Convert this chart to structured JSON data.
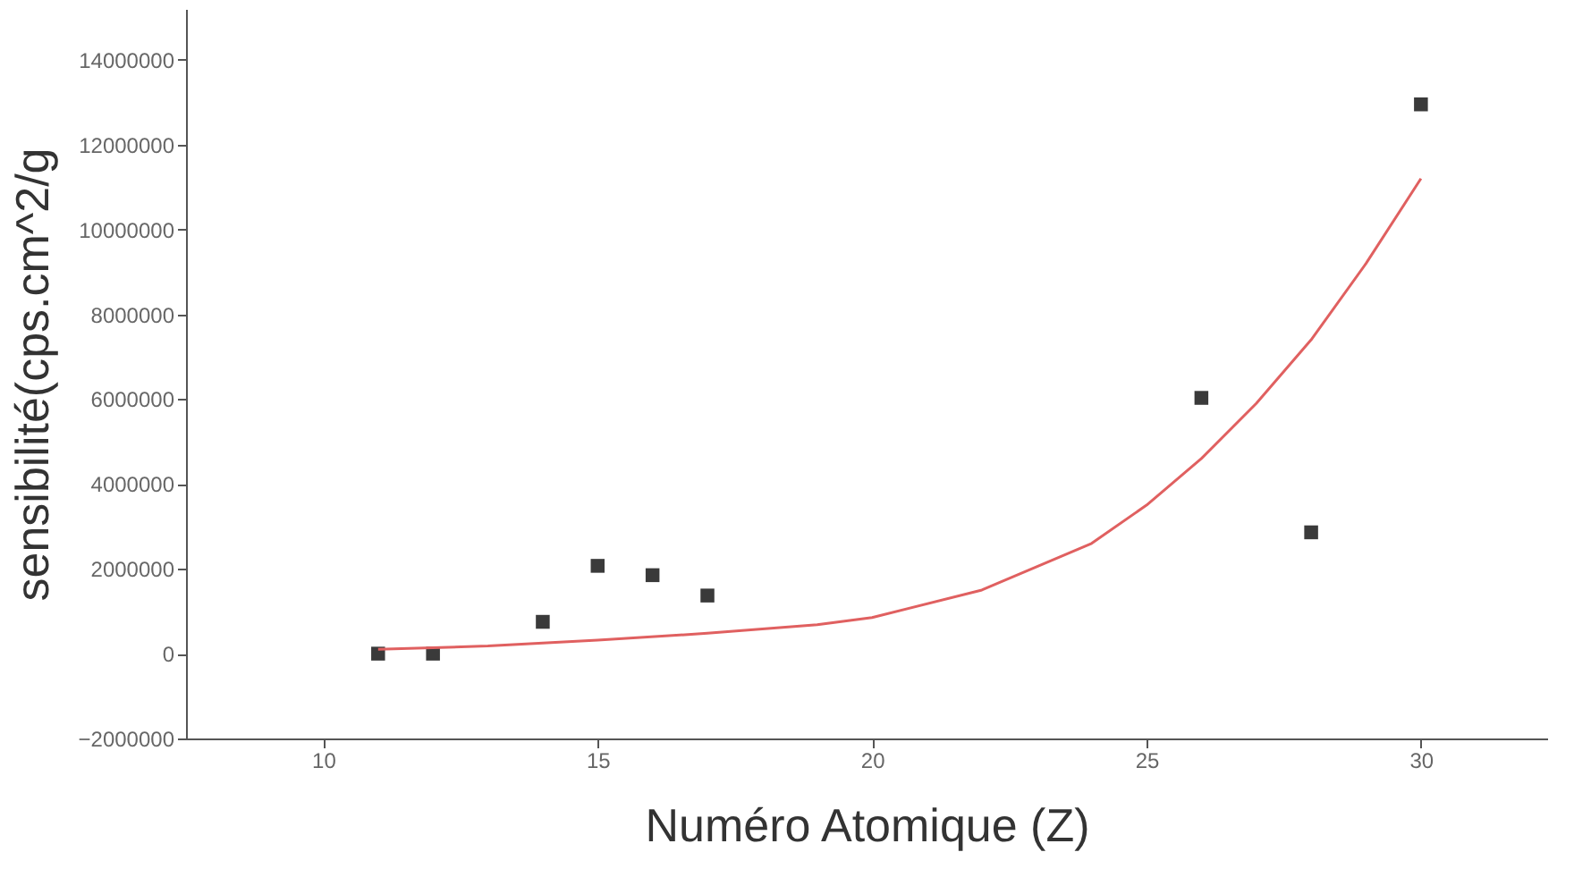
{
  "chart_data": {
    "type": "scatter",
    "xlabel": "Numéro Atomique (Z)",
    "ylabel": "sensibilité(cps.cm^2/g",
    "xlim": [
      7.5,
      32.3
    ],
    "xticks": [
      10,
      15,
      20,
      25,
      30
    ],
    "ylim": [
      -2000000,
      15200000
    ],
    "yticks": [
      -2000000,
      0,
      2000000,
      4000000,
      6000000,
      8000000,
      10000000,
      12000000,
      14000000
    ],
    "grid": false,
    "series": [
      {
        "type": "scatter",
        "marker": "square",
        "color": "#3a3a3a",
        "x": [
          11,
          12,
          14,
          15,
          16,
          17,
          26,
          28,
          30
        ],
        "values": [
          0,
          0,
          750000,
          2070000,
          1850000,
          1370000,
          6030000,
          2860000,
          12950000
        ]
      },
      {
        "type": "line",
        "color": "#e06060",
        "line_style": "solid",
        "x": [
          11,
          13,
          15,
          17,
          19,
          20,
          22,
          24,
          25,
          26,
          27,
          28,
          29,
          30
        ],
        "values": [
          100000,
          180000,
          320000,
          480000,
          680000,
          850000,
          1500000,
          2600000,
          3500000,
          4600000,
          5900000,
          7400000,
          9200000,
          11200000
        ]
      }
    ]
  }
}
